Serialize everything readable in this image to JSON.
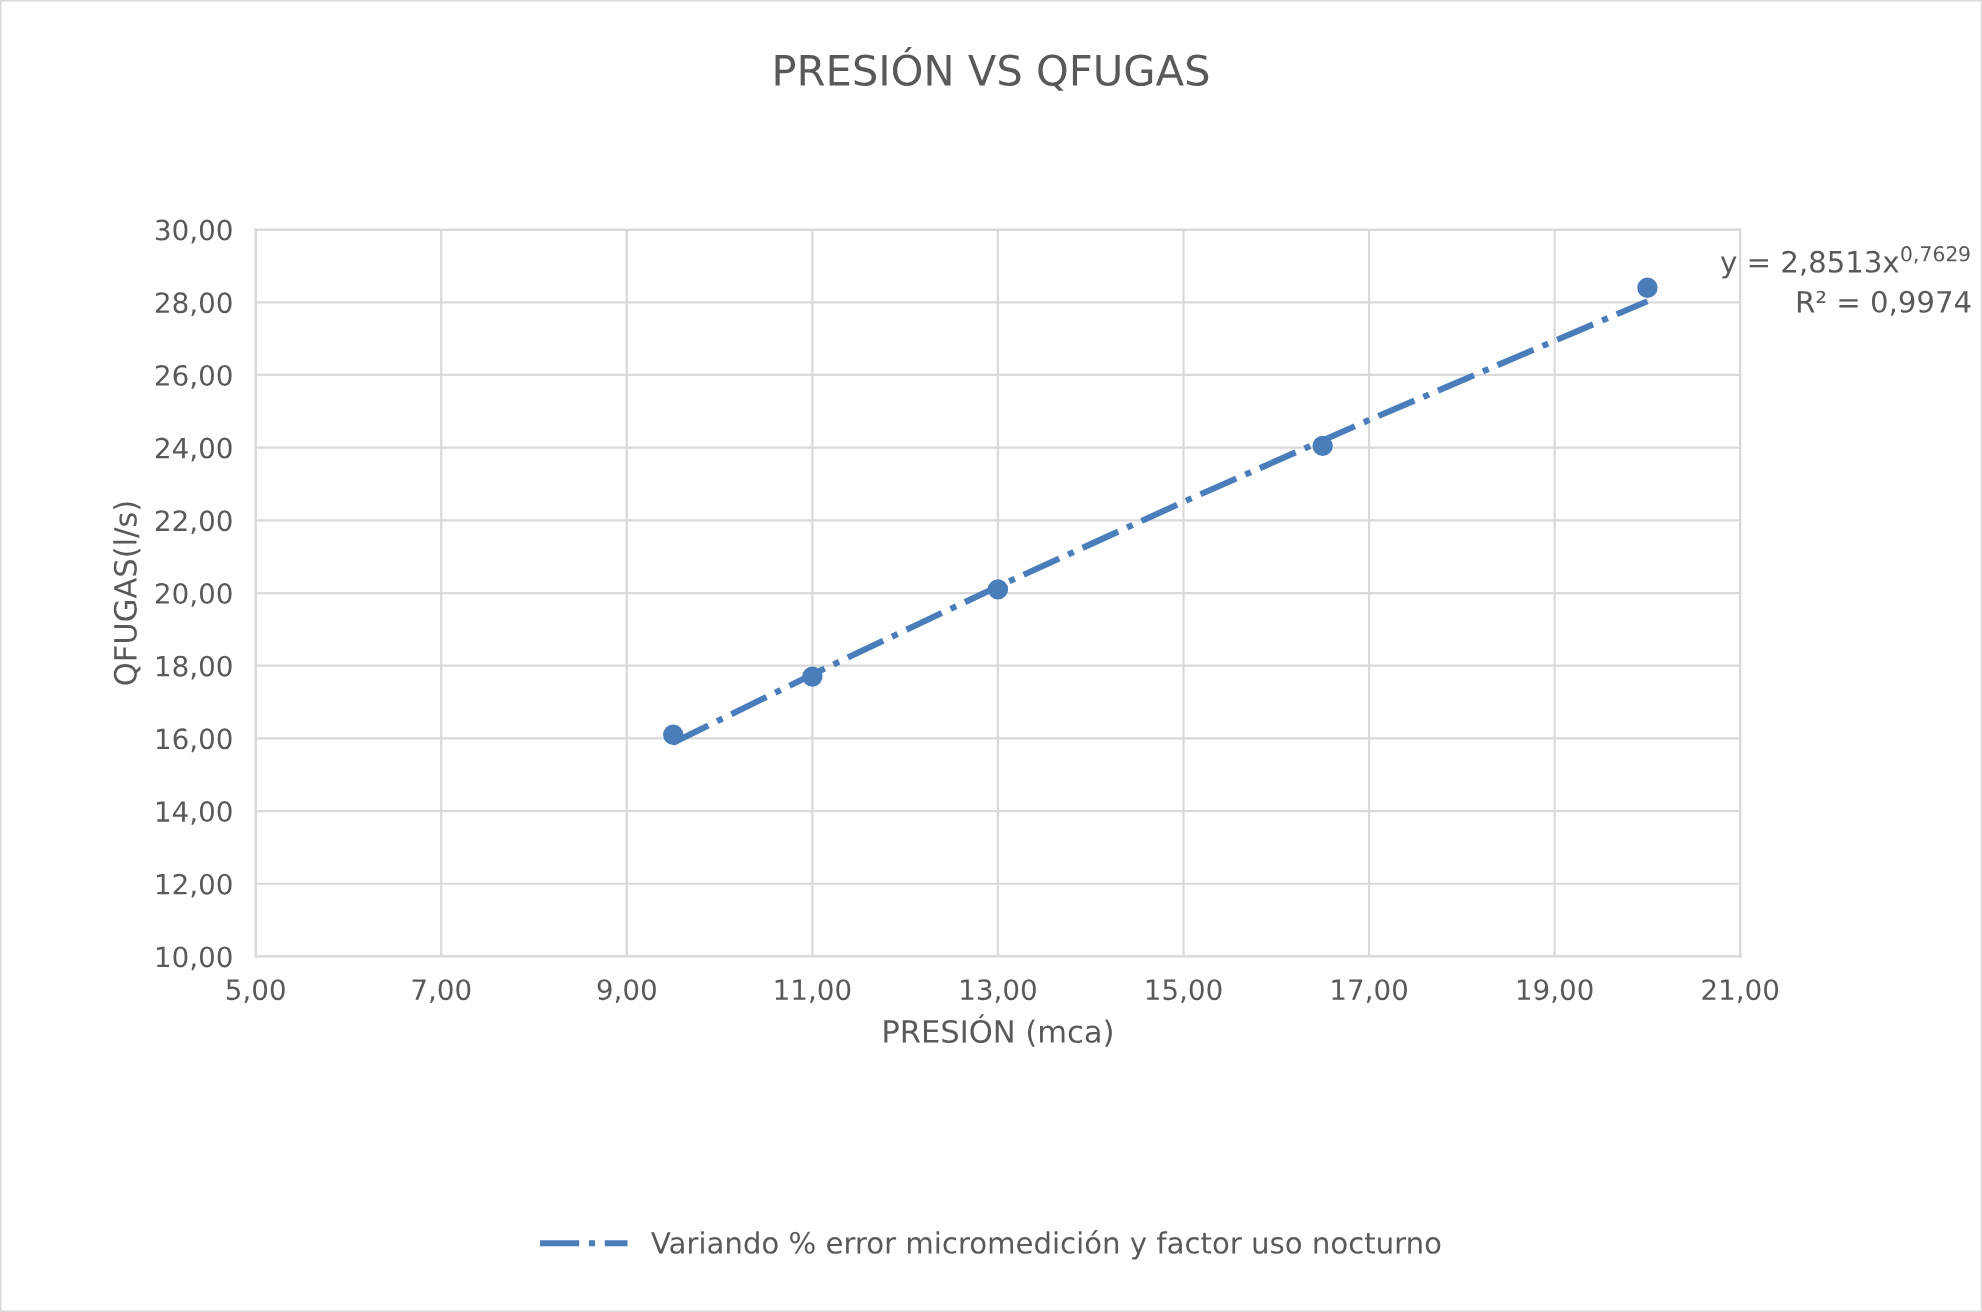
{
  "chart_data": {
    "type": "scatter",
    "title": "PRESIÓN VS QFUGAS",
    "xlabel": "PRESIÓN (mca)",
    "ylabel": "QFUGAS(l/s)",
    "annotations": [
      "y = 2,8513x$^{0,7629}$",
      "R² = 0,9974"
    ],
    "series": [
      {
        "color": "#4a7ebb",
        "marker": "circle",
        "x": [
          9.5,
          11,
          13,
          16.5,
          20
        ],
        "values": [
          16.1,
          17.7,
          20.1,
          24.05,
          28.4
        ]
      },
      {
        "type": "line",
        "name": "Variando % error micromedición y factor uso nocturno",
        "color": "#4a7ebb",
        "line_style": "dashdot",
        "marker": "none",
        "x": [
          9.5,
          11,
          13,
          15,
          17,
          20
        ],
        "values": [
          15.88,
          17.76,
          20.18,
          22.51,
          24.76,
          28.03
        ]
      }
    ],
    "xlim": [
      5,
      21
    ],
    "ylim": [
      10,
      30
    ],
    "xticks": [
      {
        "value": 5,
        "label": "5,00"
      },
      {
        "value": 7,
        "label": "7,00"
      },
      {
        "value": 9,
        "label": "9,00"
      },
      {
        "value": 11,
        "label": "11,00"
      },
      {
        "value": 13,
        "label": "13,00"
      },
      {
        "value": 15,
        "label": "15,00"
      },
      {
        "value": 17,
        "label": "17,00"
      },
      {
        "value": 19,
        "label": "19,00"
      },
      {
        "value": 21,
        "label": "21,00"
      }
    ],
    "yticks": [
      {
        "value": 10,
        "label": "10,00"
      },
      {
        "value": 12,
        "label": "12,00"
      },
      {
        "value": 14,
        "label": "14,00"
      },
      {
        "value": 16,
        "label": "16,00"
      },
      {
        "value": 18,
        "label": "18,00"
      },
      {
        "value": 20,
        "label": "20,00"
      },
      {
        "value": 22,
        "label": "22,00"
      },
      {
        "value": 24,
        "label": "24,00"
      },
      {
        "value": 26,
        "label": "26,00"
      },
      {
        "value": 28,
        "label": "28,00"
      },
      {
        "value": 30,
        "label": "30,00"
      }
    ],
    "grid": true,
    "legend": "bottom"
  }
}
